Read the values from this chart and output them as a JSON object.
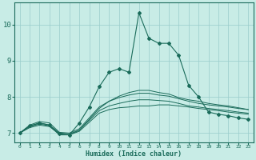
{
  "xlabel": "Humidex (Indice chaleur)",
  "xlim": [
    -0.5,
    23.5
  ],
  "ylim": [
    6.75,
    10.6
  ],
  "xticks": [
    0,
    1,
    2,
    3,
    4,
    5,
    6,
    7,
    8,
    9,
    10,
    11,
    12,
    13,
    14,
    15,
    16,
    17,
    18,
    19,
    20,
    21,
    22,
    23
  ],
  "yticks": [
    7,
    8,
    9,
    10
  ],
  "bg_color": "#c8ece6",
  "line_color": "#1a6b5a",
  "grid_color": "#99cccc",
  "lines": [
    {
      "x": [
        0,
        1,
        2,
        3,
        4,
        5,
        6,
        7,
        8,
        9,
        10,
        11,
        12,
        13,
        14,
        15,
        16,
        17,
        18,
        19,
        20,
        21,
        22,
        23
      ],
      "y": [
        7.0,
        7.15,
        7.22,
        7.18,
        6.97,
        6.95,
        7.05,
        7.3,
        7.55,
        7.65,
        7.7,
        7.72,
        7.75,
        7.75,
        7.78,
        7.78,
        7.75,
        7.72,
        7.68,
        7.65,
        7.62,
        7.58,
        7.55,
        7.52
      ],
      "marker": false
    },
    {
      "x": [
        0,
        1,
        2,
        3,
        4,
        5,
        6,
        7,
        8,
        9,
        10,
        11,
        12,
        13,
        14,
        15,
        16,
        17,
        18,
        19,
        20,
        21,
        22,
        23
      ],
      "y": [
        7.0,
        7.18,
        7.28,
        7.22,
        7.0,
        6.98,
        7.08,
        7.35,
        7.62,
        7.75,
        7.82,
        7.88,
        7.92,
        7.92,
        7.9,
        7.88,
        7.82,
        7.75,
        7.72,
        7.68,
        7.65,
        7.62,
        7.58,
        7.55
      ],
      "marker": false
    },
    {
      "x": [
        0,
        1,
        2,
        3,
        4,
        5,
        6,
        7,
        8,
        9,
        10,
        11,
        12,
        13,
        14,
        15,
        16,
        17,
        18,
        19,
        20,
        21,
        22,
        23
      ],
      "y": [
        7.0,
        7.22,
        7.32,
        7.28,
        7.02,
        7.0,
        7.12,
        7.42,
        7.72,
        7.88,
        7.98,
        8.05,
        8.1,
        8.1,
        8.05,
        8.02,
        7.95,
        7.88,
        7.82,
        7.78,
        7.75,
        7.72,
        7.68,
        7.65
      ],
      "marker": false
    },
    {
      "x": [
        0,
        1,
        2,
        3,
        4,
        5,
        6,
        7,
        8,
        9,
        10,
        11,
        12,
        13,
        14,
        15,
        16,
        17,
        18,
        19,
        20,
        21,
        22,
        23
      ],
      "y": [
        7.0,
        7.18,
        7.25,
        7.2,
        6.95,
        6.95,
        7.08,
        7.38,
        7.68,
        7.88,
        8.02,
        8.12,
        8.18,
        8.18,
        8.12,
        8.08,
        7.98,
        7.92,
        7.88,
        7.82,
        7.78,
        7.75,
        7.7,
        7.65
      ],
      "marker": false
    },
    {
      "x": [
        0,
        1,
        2,
        3,
        4,
        5,
        6,
        7,
        8,
        9,
        10,
        11,
        12,
        13,
        14,
        15,
        16,
        17,
        18,
        19,
        20,
        21,
        22,
        23
      ],
      "y": [
        7.0,
        7.2,
        7.28,
        7.22,
        6.98,
        6.95,
        7.28,
        7.72,
        8.28,
        8.68,
        8.78,
        8.68,
        10.32,
        9.62,
        9.48,
        9.48,
        9.15,
        8.32,
        8.0,
        7.58,
        7.52,
        7.48,
        7.42,
        7.38
      ],
      "marker": true
    }
  ]
}
